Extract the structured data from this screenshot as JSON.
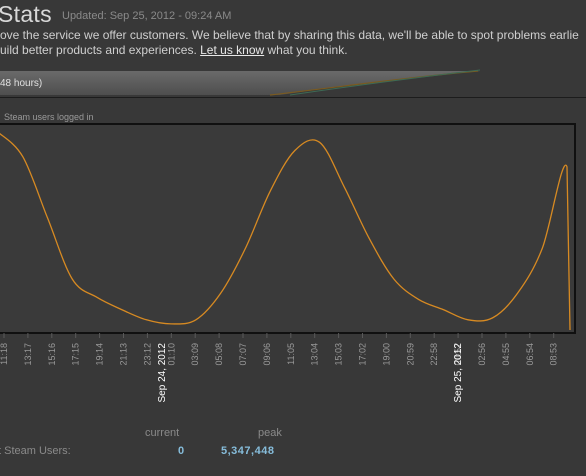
{
  "header": {
    "title": "Stats",
    "updated": "Updated: Sep 25, 2012 - 09:24 AM"
  },
  "intro": {
    "line1": "ove the service we offer customers. We believe that by sharing this data, we'll be able to spot problems earlie",
    "line2_before": "uild better products and experiences. ",
    "link": "Let us know",
    "line2_after": " what you think."
  },
  "tab": {
    "label": "48 hours)"
  },
  "chart_data": {
    "type": "line",
    "title": "Steam users logged in",
    "x_ticks": [
      "11:18",
      "13:17",
      "15:16",
      "17:15",
      "19:14",
      "21:13",
      "23:12",
      "01:10",
      "03:09",
      "05:08",
      "07:07",
      "09:06",
      "11:05",
      "13:04",
      "15:03",
      "17:02",
      "19:00",
      "20:59",
      "22:58",
      "00:57",
      "02:56",
      "04:55",
      "06:54",
      "08:53"
    ],
    "date_labels": [
      "Sep 24, 2012",
      "Sep 25, 2012"
    ],
    "grid": false,
    "legend": "none",
    "series": [
      {
        "values": [
          0.97,
          0.85,
          0.55,
          0.25,
          0.16,
          0.1,
          0.05,
          0.03,
          0.05,
          0.18,
          0.4,
          0.68,
          0.88,
          0.92,
          0.7,
          0.45,
          0.25,
          0.15,
          0.1,
          0.05,
          0.06,
          0.18,
          0.4,
          0.8,
          0.0
        ]
      }
    ],
    "line_color": "#d78a22"
  },
  "stats": {
    "current_header": "current",
    "peak_header": "peak",
    "label": "t Steam Users:",
    "current": "0",
    "peak": "5,347,448"
  }
}
